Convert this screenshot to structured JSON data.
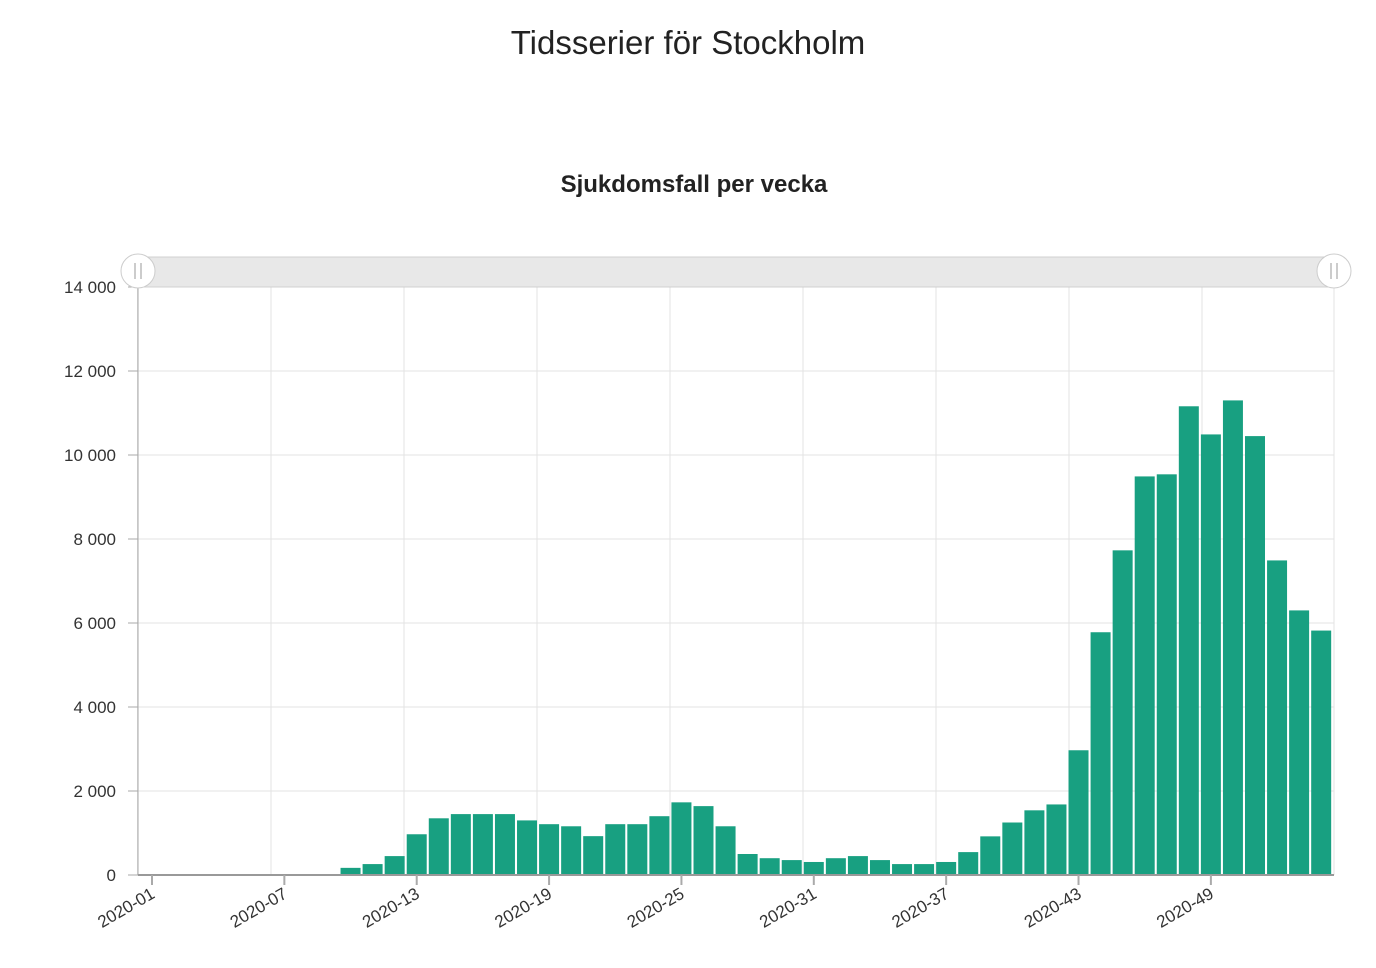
{
  "page": {
    "title": "Tidsserier för Stockholm"
  },
  "chart_data": {
    "type": "bar",
    "title": "Sjukdomsfall per vecka",
    "xlabel": "",
    "ylabel": "",
    "ylim": [
      0,
      14000
    ],
    "yticks": [
      0,
      2000,
      4000,
      6000,
      8000,
      10000,
      12000,
      14000
    ],
    "ytick_labels": [
      "0",
      "2 000",
      "4 000",
      "6 000",
      "8 000",
      "10 000",
      "12 000",
      "14 000"
    ],
    "xtick_labels": [
      "2020-01",
      "2020-07",
      "2020-13",
      "2020-19",
      "2020-25",
      "2020-31",
      "2020-37",
      "2020-43",
      "2020-49"
    ],
    "xtick_every": 6,
    "grid": true,
    "color": "#18a081",
    "navigator": {
      "range": [
        0,
        1
      ]
    },
    "values": [
      20,
      20,
      20,
      20,
      20,
      20,
      20,
      20,
      20,
      170,
      260,
      450,
      970,
      1350,
      1450,
      1450,
      1450,
      1300,
      1210,
      1160,
      925,
      1210,
      1210,
      1400,
      1730,
      1640,
      1160,
      500,
      400,
      355,
      310,
      400,
      450,
      355,
      260,
      260,
      310,
      545,
      920,
      1250,
      1540,
      1680,
      2970,
      5780,
      7730,
      9490,
      9540,
      11160,
      10490,
      11300,
      10450,
      7490,
      6300,
      5820
    ]
  }
}
